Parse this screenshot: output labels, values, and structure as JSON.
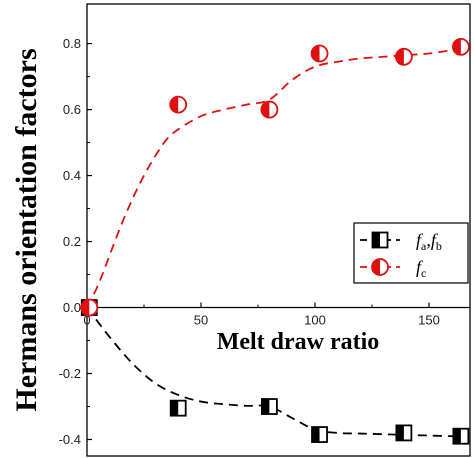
{
  "chart_data": {
    "type": "scatter",
    "xlabel": "Melt draw ratio",
    "ylabel": "Hermans orientation factors",
    "xlim": [
      0,
      168
    ],
    "ylim": [
      -0.45,
      0.92
    ],
    "x_ticks": [
      0,
      50,
      100,
      150
    ],
    "y_ticks": [
      -0.4,
      -0.2,
      0.0,
      0.2,
      0.4,
      0.6,
      0.8
    ],
    "x_tick_labels": [
      "0",
      "50",
      "100",
      "150"
    ],
    "y_tick_labels": [
      "-0.4",
      "-0.2",
      "0.0",
      "0.2",
      "0.4",
      "0.6",
      "0.8"
    ],
    "grid": false,
    "legend_position": "right",
    "series": [
      {
        "name": "fa,fb",
        "legend": {
          "main": "f",
          "sub": "a",
          "sep": ",",
          "main2": "f",
          "sub2": "b"
        },
        "marker": "half-filled-square",
        "color": "#000000",
        "line_style": "dashed",
        "x": [
          1,
          40,
          80,
          102,
          139,
          164
        ],
        "y": [
          0.0,
          -0.305,
          -0.3,
          -0.385,
          -0.38,
          -0.39
        ],
        "fit_x": [
          0,
          10,
          20,
          30,
          40,
          50,
          60,
          70,
          80,
          90,
          100,
          110,
          120,
          130,
          140,
          150,
          160,
          166
        ],
        "fit_y": [
          0.0,
          -0.09,
          -0.17,
          -0.23,
          -0.265,
          -0.285,
          -0.293,
          -0.298,
          -0.3,
          -0.335,
          -0.37,
          -0.38,
          -0.382,
          -0.384,
          -0.386,
          -0.388,
          -0.39,
          -0.39
        ]
      },
      {
        "name": "fc",
        "legend": {
          "main": "f",
          "sub": "c"
        },
        "marker": "half-filled-circle",
        "color": "#e01010",
        "line_style": "dashed",
        "x": [
          1,
          40,
          80,
          102,
          139,
          164
        ],
        "y": [
          0.0,
          0.615,
          0.6,
          0.77,
          0.76,
          0.79
        ],
        "fit_x": [
          0,
          5,
          10,
          15,
          20,
          25,
          30,
          35,
          40,
          50,
          60,
          70,
          80,
          90,
          100,
          110,
          120,
          130,
          140,
          150,
          160,
          166
        ],
        "fit_y": [
          0.0,
          0.07,
          0.16,
          0.25,
          0.33,
          0.4,
          0.46,
          0.51,
          0.54,
          0.58,
          0.6,
          0.615,
          0.63,
          0.69,
          0.73,
          0.745,
          0.755,
          0.76,
          0.765,
          0.77,
          0.78,
          0.785
        ]
      }
    ]
  }
}
